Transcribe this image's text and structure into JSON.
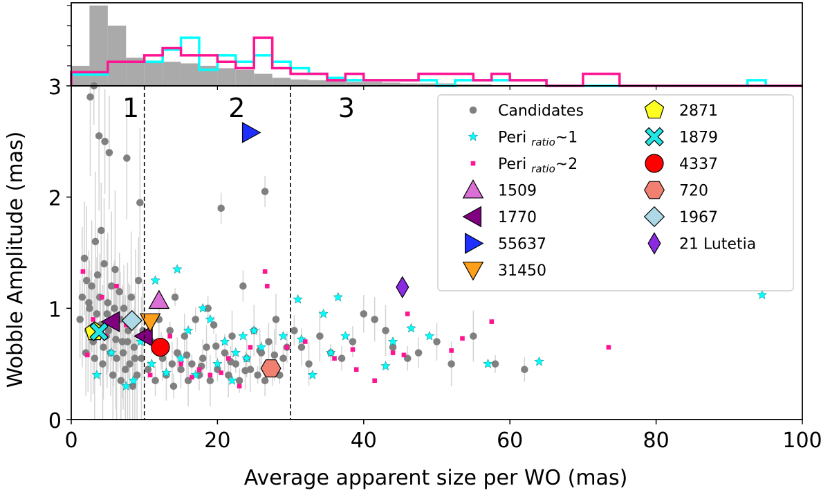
{
  "chart_data": {
    "type": "scatter",
    "xlabel": "Average apparent size per WO (mas)",
    "ylabel": "Wobble Amplitude (mas)",
    "xlim": [
      0,
      100
    ],
    "ylim": [
      0,
      3
    ],
    "xticks": [
      0,
      20,
      40,
      60,
      80,
      100
    ],
    "yticks": [
      0,
      1,
      2,
      3
    ],
    "x_tick_labels": [
      "0",
      "20",
      "40",
      "60",
      "80",
      "100"
    ],
    "y_tick_labels": [
      "0",
      "1",
      "2",
      "3"
    ],
    "region_boundaries": [
      10,
      30
    ],
    "region_labels": [
      {
        "text": "1",
        "x": 7,
        "y": 2.72
      },
      {
        "text": "2",
        "x": 21.5,
        "y": 2.72
      },
      {
        "text": "3",
        "x": 36.5,
        "y": 2.72
      }
    ],
    "legend_position": "upper right",
    "grid": false,
    "colors": {
      "candidates": "#808080",
      "peri1": "#00ffff",
      "peri2": "#ff1493",
      "errorbar": "#d3d3d3"
    },
    "series": [
      {
        "name": "Candidates",
        "marker": "dot",
        "color": "#808080",
        "points": [
          [
            1.2,
            0.9
          ],
          [
            1.5,
            1.1
          ],
          [
            1.8,
            1.45
          ],
          [
            2.0,
            0.6
          ],
          [
            2.1,
            1.25
          ],
          [
            2.3,
            0.8
          ],
          [
            2.5,
            1.0
          ],
          [
            2.6,
            2.9
          ],
          [
            2.8,
            1.2
          ],
          [
            3.0,
            0.7
          ],
          [
            3.1,
            3.0
          ],
          [
            3.3,
            1.6
          ],
          [
            3.5,
            0.95
          ],
          [
            3.6,
            1.3
          ],
          [
            3.8,
            2.55
          ],
          [
            4.0,
            0.85
          ],
          [
            4.1,
            1.7
          ],
          [
            4.3,
            0.5
          ],
          [
            4.5,
            1.4
          ],
          [
            4.6,
            2.5
          ],
          [
            4.8,
            0.75
          ],
          [
            5.0,
            1.05
          ],
          [
            5.2,
            2.4
          ],
          [
            5.4,
            0.6
          ],
          [
            5.5,
            1.2
          ],
          [
            5.7,
            0.4
          ],
          [
            5.9,
            1.0
          ],
          [
            6.0,
            1.35
          ],
          [
            6.2,
            0.55
          ],
          [
            6.4,
            0.9
          ],
          [
            6.6,
            1.15
          ],
          [
            6.8,
            0.35
          ],
          [
            7.0,
            0.7
          ],
          [
            7.2,
            1.0
          ],
          [
            7.4,
            0.45
          ],
          [
            7.6,
            2.35
          ],
          [
            7.8,
            0.8
          ],
          [
            8.0,
            0.5
          ],
          [
            8.2,
            1.1
          ],
          [
            8.4,
            0.3
          ],
          [
            8.6,
            0.65
          ],
          [
            8.8,
            0.9
          ],
          [
            9.0,
            0.4
          ],
          [
            9.2,
            1.25
          ],
          [
            9.4,
            1.95
          ],
          [
            9.6,
            0.55
          ],
          [
            9.8,
            0.8
          ],
          [
            3.2,
            0.55
          ],
          [
            2.7,
            0.75
          ],
          [
            4.4,
            0.65
          ],
          [
            5.1,
            0.8
          ],
          [
            6.1,
            0.72
          ],
          [
            7.1,
            0.6
          ],
          [
            3.9,
            1.1
          ],
          [
            4.9,
            0.95
          ],
          [
            5.8,
            0.85
          ],
          [
            6.7,
            0.9
          ],
          [
            7.7,
            0.7
          ],
          [
            8.7,
            0.55
          ],
          [
            2.4,
            1.05
          ],
          [
            10.5,
            0.45
          ],
          [
            11.0,
            0.7
          ],
          [
            11.5,
            0.35
          ],
          [
            12.0,
            0.9
          ],
          [
            12.5,
            0.55
          ],
          [
            13.0,
            0.4
          ],
          [
            13.5,
            0.8
          ],
          [
            14.0,
            0.3
          ],
          [
            14.5,
            0.6
          ],
          [
            15.0,
            0.45
          ],
          [
            15.5,
            0.75
          ],
          [
            16.0,
            0.35
          ],
          [
            16.5,
            0.5
          ],
          [
            17.0,
            0.9
          ],
          [
            17.5,
            0.4
          ],
          [
            18.0,
            0.55
          ],
          [
            18.5,
            0.65
          ],
          [
            19.0,
            0.35
          ],
          [
            19.5,
            0.85
          ],
          [
            20.0,
            0.45
          ],
          [
            20.5,
            1.9
          ],
          [
            21.0,
            0.6
          ],
          [
            21.5,
            0.4
          ],
          [
            22.0,
            0.75
          ],
          [
            22.5,
            0.5
          ],
          [
            23.0,
            0.35
          ],
          [
            23.5,
            1.2
          ],
          [
            24.0,
            0.55
          ],
          [
            24.5,
            0.45
          ],
          [
            25.0,
            0.8
          ],
          [
            25.5,
            0.4
          ],
          [
            26.0,
            0.6
          ],
          [
            26.5,
            0.35
          ],
          [
            27.0,
            0.7
          ],
          [
            27.5,
            0.5
          ],
          [
            28.0,
            0.9
          ],
          [
            28.5,
            0.4
          ],
          [
            29.0,
            0.55
          ],
          [
            29.5,
            0.65
          ],
          [
            12.3,
            0.62
          ],
          [
            13.8,
            0.5
          ],
          [
            15.8,
            0.58
          ],
          [
            17.8,
            0.48
          ],
          [
            19.8,
            0.66
          ],
          [
            21.8,
            0.52
          ],
          [
            23.8,
            0.44
          ],
          [
            25.8,
            0.62
          ],
          [
            27.8,
            0.58
          ],
          [
            14.2,
            1.1
          ],
          [
            18.7,
            1.0
          ],
          [
            30.5,
            0.8
          ],
          [
            31.5,
            0.65
          ],
          [
            32.5,
            0.5
          ],
          [
            34.0,
            0.75
          ],
          [
            35.5,
            0.6
          ],
          [
            37.0,
            0.55
          ],
          [
            38.5,
            0.7
          ],
          [
            40.0,
            0.95
          ],
          [
            41.5,
            0.9
          ],
          [
            43.0,
            0.8
          ],
          [
            44.0,
            0.65
          ],
          [
            46.0,
            0.55
          ],
          [
            47.5,
            0.6
          ],
          [
            50.0,
            0.7
          ],
          [
            52.0,
            0.5
          ],
          [
            55.0,
            0.75
          ],
          [
            58.0,
            0.5
          ],
          [
            62.0,
            0.45
          ],
          [
            26.5,
            2.05
          ]
        ]
      },
      {
        "name": "Peri ratio~1",
        "marker": "star",
        "color": "#00ffff",
        "points": [
          [
            3.5,
            0.4
          ],
          [
            5.5,
            0.6
          ],
          [
            7.5,
            0.3
          ],
          [
            8.5,
            0.35
          ],
          [
            9.5,
            0.7
          ],
          [
            11.0,
            0.5
          ],
          [
            11.5,
            1.25
          ],
          [
            13.0,
            0.42
          ],
          [
            14.5,
            1.35
          ],
          [
            15.0,
            0.55
          ],
          [
            16.0,
            0.8
          ],
          [
            17.0,
            0.4
          ],
          [
            18.0,
            1.0
          ],
          [
            19.0,
            0.9
          ],
          [
            20.0,
            0.5
          ],
          [
            21.0,
            0.7
          ],
          [
            22.0,
            0.35
          ],
          [
            22.5,
            0.6
          ],
          [
            23.5,
            0.75
          ],
          [
            24.0,
            0.55
          ],
          [
            25.0,
            0.8
          ],
          [
            26.0,
            0.65
          ],
          [
            28.0,
            0.45
          ],
          [
            29.0,
            0.75
          ],
          [
            31.0,
            1.08
          ],
          [
            31.5,
            0.72
          ],
          [
            33.0,
            0.4
          ],
          [
            34.5,
            0.95
          ],
          [
            35.5,
            0.6
          ],
          [
            36.5,
            1.1
          ],
          [
            37.5,
            0.75
          ],
          [
            43.0,
            0.48
          ],
          [
            44.0,
            0.7
          ],
          [
            46.5,
            0.82
          ],
          [
            49.0,
            0.75
          ],
          [
            57.0,
            0.5
          ],
          [
            64.0,
            0.52
          ],
          [
            94.5,
            1.12
          ]
        ]
      },
      {
        "name": "Peri ratio~2",
        "marker": "square",
        "color": "#ff1493",
        "points": [
          [
            1.6,
            1.33
          ],
          [
            2.2,
            0.58
          ],
          [
            3.0,
            0.9
          ],
          [
            4.2,
            1.1
          ],
          [
            4.7,
            0.75
          ],
          [
            6.2,
            1.2
          ],
          [
            7.5,
            0.85
          ],
          [
            10.8,
            0.4
          ],
          [
            12.0,
            0.65
          ],
          [
            13.5,
            0.75
          ],
          [
            15.0,
            0.5
          ],
          [
            16.5,
            0.38
          ],
          [
            17.5,
            0.45
          ],
          [
            19.0,
            0.4
          ],
          [
            20.5,
            0.42
          ],
          [
            21.5,
            0.55
          ],
          [
            23.0,
            0.3
          ],
          [
            24.5,
            0.65
          ],
          [
            26.5,
            1.33
          ],
          [
            26.8,
            1.2
          ],
          [
            27.5,
            0.45
          ],
          [
            29.5,
            0.65
          ],
          [
            32.0,
            0.7
          ],
          [
            36.0,
            0.55
          ],
          [
            38.5,
            0.63
          ],
          [
            39.0,
            0.45
          ],
          [
            41.5,
            0.35
          ],
          [
            44.0,
            0.6
          ],
          [
            45.5,
            0.58
          ],
          [
            46.0,
            0.95
          ],
          [
            52.0,
            0.62
          ],
          [
            53.5,
            0.73
          ],
          [
            57.5,
            0.88
          ],
          [
            73.5,
            0.65
          ]
        ]
      }
    ],
    "named_objects": [
      {
        "name": "1509",
        "x": 12.0,
        "y": 1.07,
        "marker": "triangle-up",
        "color": "#da70d6"
      },
      {
        "name": "1770",
        "x": 5.5,
        "y": 0.88,
        "marker": "triangle-left",
        "color": "#800080"
      },
      {
        "name": "1770",
        "x": 10.0,
        "y": 0.75,
        "marker": "triangle-left",
        "color": "#800080"
      },
      {
        "name": "55637",
        "x": 24.5,
        "y": 2.58,
        "marker": "triangle-right",
        "color": "#1e2fff"
      },
      {
        "name": "31450",
        "x": 10.8,
        "y": 0.88,
        "marker": "triangle-down",
        "color": "#ff9f1a"
      },
      {
        "name": "2871",
        "x": 3.2,
        "y": 0.79,
        "marker": "pentagon",
        "color": "#ffff22"
      },
      {
        "name": "1879",
        "x": 3.8,
        "y": 0.79,
        "marker": "x",
        "color": "#22e5e5"
      },
      {
        "name": "4337",
        "x": 12.2,
        "y": 0.65,
        "marker": "circle",
        "color": "#ff0000"
      },
      {
        "name": "720",
        "x": 27.3,
        "y": 0.46,
        "marker": "hexagon",
        "color": "#f08070"
      },
      {
        "name": "1967",
        "x": 8.3,
        "y": 0.89,
        "marker": "diamond",
        "color": "#add8e6"
      },
      {
        "name": "21 Lutetia",
        "x": 45.3,
        "y": 1.19,
        "marker": "thin-diamond",
        "color": "#8a2be2"
      }
    ],
    "legend_entries": [
      {
        "label": "Candidates",
        "marker": "dot",
        "color": "#808080"
      },
      {
        "label_main": "Peri ",
        "label_sub": "ratio",
        "label_tail": "~1",
        "marker": "star",
        "color": "#00ffff"
      },
      {
        "label_main": "Peri ",
        "label_sub": "ratio",
        "label_tail": "~2",
        "marker": "square",
        "color": "#ff1493"
      },
      {
        "label": "1509",
        "marker": "triangle-up",
        "color": "#da70d6"
      },
      {
        "label": "1770",
        "marker": "triangle-left",
        "color": "#800080"
      },
      {
        "label": "55637",
        "marker": "triangle-right",
        "color": "#1e2fff"
      },
      {
        "label": "31450",
        "marker": "triangle-down",
        "color": "#ff9f1a"
      },
      {
        "label": "2871",
        "marker": "pentagon",
        "color": "#ffff22"
      },
      {
        "label": "1879",
        "marker": "x",
        "color": "#22e5e5"
      },
      {
        "label": "4337",
        "marker": "circle",
        "color": "#ff0000"
      },
      {
        "label": "720",
        "marker": "hexagon",
        "color": "#f08070"
      },
      {
        "label": "1967",
        "marker": "diamond",
        "color": "#add8e6"
      },
      {
        "label": "21 Lutetia",
        "marker": "thin-diamond",
        "color": "#8a2be2"
      }
    ],
    "histogram": {
      "bin_width": 2.5,
      "bin_starts": [
        0,
        2.5,
        5,
        7.5,
        10,
        12.5,
        15,
        17.5,
        20,
        22.5,
        25,
        27.5,
        30,
        32.5,
        35,
        37.5,
        40,
        42.5,
        45,
        47.5,
        50,
        52.5,
        55,
        57.5,
        60,
        62.5,
        65,
        67.5,
        70,
        72.5,
        75,
        77.5,
        80,
        82.5,
        85,
        87.5,
        90,
        92.5,
        95,
        97.5
      ],
      "series": [
        {
          "name": "Candidates",
          "style": "filled",
          "color": "#aaaaaa",
          "counts": [
            0.25,
            1.0,
            0.75,
            0.35,
            0.3,
            0.3,
            0.28,
            0.25,
            0.22,
            0.2,
            0.15,
            0.1,
            0.08,
            0.07,
            0.06,
            0.05,
            0.05,
            0.04,
            0.03,
            0.03,
            0.03,
            0.02,
            0.02,
            0.01,
            0.01,
            0.01,
            0,
            0,
            0,
            0,
            0,
            0,
            0,
            0,
            0,
            0,
            0,
            0,
            0,
            0
          ]
        },
        {
          "name": "Peri ratio~1",
          "style": "step",
          "color": "#00ffff",
          "counts": [
            0.14,
            0.14,
            0.3,
            0.3,
            0.3,
            0.45,
            0.6,
            0.2,
            0.38,
            0.3,
            0.38,
            0.3,
            0.22,
            0.15,
            0.1,
            0.07,
            0.07,
            0.07,
            0.07,
            0.07,
            0,
            0.07,
            0.07,
            0.07,
            0.07,
            0.07,
            0,
            0,
            0,
            0,
            0,
            0,
            0,
            0,
            0,
            0,
            0,
            0.07,
            0,
            0
          ]
        },
        {
          "name": "Peri ratio~2",
          "style": "step",
          "color": "#ff1493",
          "counts": [
            0.17,
            0.17,
            0.3,
            0.3,
            0.38,
            0.47,
            0.38,
            0.38,
            0.3,
            0.22,
            0.6,
            0.22,
            0.15,
            0.15,
            0.07,
            0.15,
            0.07,
            0.07,
            0.07,
            0.15,
            0.15,
            0.15,
            0.07,
            0.15,
            0.07,
            0.07,
            0,
            0,
            0.15,
            0.15,
            0,
            0,
            0,
            0,
            0,
            0,
            0,
            0,
            0,
            0
          ]
        }
      ]
    }
  }
}
